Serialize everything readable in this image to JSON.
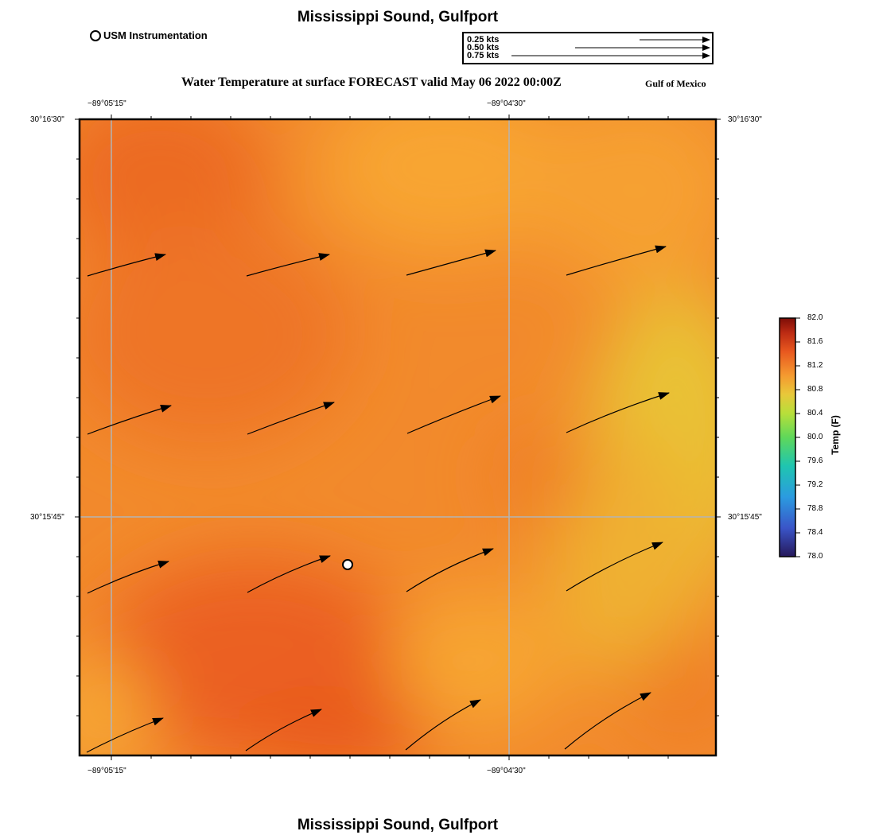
{
  "header": {
    "title": "Mississippi Sound, Gulfport",
    "subtitle": "Water Temperature at surface FORECAST valid May 06 2022 00:00Z",
    "region": "Gulf of Mexico",
    "footer_title": "Mississippi Sound, Gulfport"
  },
  "legend": {
    "station_label": "USM Instrumentation"
  },
  "vector_scale": {
    "labels": [
      "0.25 kts",
      "0.50 kts",
      "0.75 kts"
    ]
  },
  "axes": {
    "top_lon_labels": [
      "−89°05'15\"",
      "−89°04'30\""
    ],
    "bottom_lon_labels": [
      "−89°05'15\"",
      "−89°04'30\""
    ],
    "left_lat_labels": [
      "30°16'30\"",
      "30°15'45\""
    ],
    "right_lat_labels": [
      "30°16'30\"",
      "30°15'45\""
    ]
  },
  "colorbar": {
    "title": "Temp (F)",
    "ticks": [
      "82.0",
      "81.6",
      "81.2",
      "80.8",
      "80.4",
      "80.0",
      "79.6",
      "79.2",
      "78.8",
      "78.4",
      "78.0"
    ],
    "min": 78.0,
    "max": 82.0
  },
  "colors": {
    "field_dark": "#ec6420",
    "field_mid": "#f28a2c",
    "field_light": "#f8a532",
    "field_yellow": "#e9c235",
    "grid": "#b4b4b4"
  }
}
